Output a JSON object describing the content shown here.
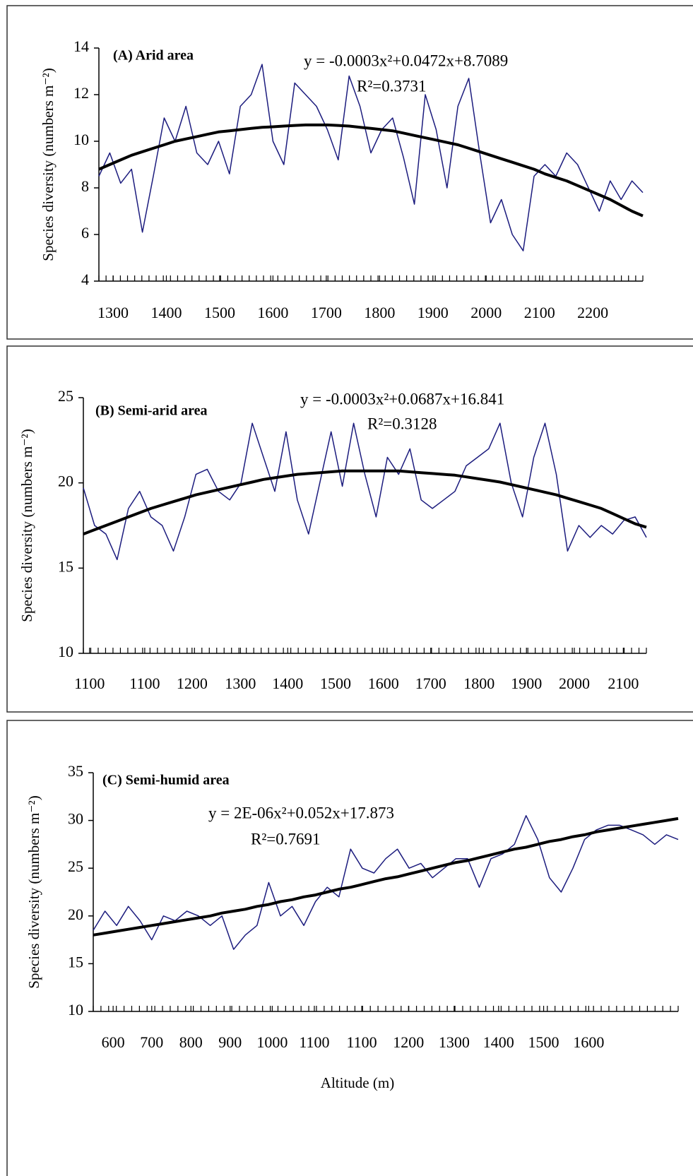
{
  "chart_data": [
    {
      "type": "line",
      "title": "(A) Arid area",
      "annotations": [
        "y = -0.0003x²+0.0472x+8.7089",
        "R²=0.3731"
      ],
      "ylabel": "Species diversity (numbers m⁻²)",
      "x": [
        0,
        2,
        4,
        6,
        8,
        10,
        12,
        14,
        16,
        18,
        20,
        22,
        24,
        26,
        28,
        30,
        32,
        34,
        36,
        38,
        40,
        42,
        44,
        46,
        48,
        50,
        52,
        54,
        56,
        58,
        60,
        62,
        64,
        66,
        68,
        70,
        72,
        74,
        76,
        78,
        80,
        82,
        84,
        86,
        88,
        90,
        92,
        94,
        96,
        98,
        100
      ],
      "xlim": [
        0,
        100
      ],
      "xticks": [
        {
          "value": 2.6,
          "label": "1300"
        },
        {
          "value": 12.4,
          "label": "1400"
        },
        {
          "value": 22.2,
          "label": "1500"
        },
        {
          "value": 32,
          "label": "1600"
        },
        {
          "value": 41.8,
          "label": "1700"
        },
        {
          "value": 51.6,
          "label": "1800"
        },
        {
          "value": 61.4,
          "label": "1900"
        },
        {
          "value": 71.2,
          "label": "2000"
        },
        {
          "value": 81,
          "label": "2100"
        },
        {
          "value": 90.8,
          "label": "2200"
        }
      ],
      "ylim": [
        4,
        14
      ],
      "yticks": [
        4,
        6,
        8,
        10,
        12,
        14
      ],
      "series": [
        {
          "color": "#1c1c7e",
          "width": 1.5,
          "values": [
            8.5,
            9.5,
            8.2,
            8.8,
            6.1,
            8.5,
            11,
            10,
            11.5,
            9.5,
            9,
            10,
            8.6,
            11.5,
            12,
            13.3,
            10,
            9,
            12.5,
            12,
            11.5,
            10.5,
            9.2,
            12.8,
            11.5,
            9.5,
            10.5,
            11,
            9.3,
            7.3,
            12,
            10.5,
            8,
            11.5,
            12.7,
            9.5,
            6.5,
            7.5,
            6,
            5.3,
            8.5,
            9,
            8.5,
            9.5,
            9,
            8,
            7,
            8.3,
            7.5,
            8.3,
            7.8
          ]
        },
        {
          "color": "#000000",
          "width": 4,
          "values": [
            8.8,
            9.0,
            9.2,
            9.4,
            9.55,
            9.7,
            9.85,
            10.0,
            10.1,
            10.2,
            10.3,
            10.4,
            10.45,
            10.5,
            10.55,
            10.6,
            10.62,
            10.65,
            10.68,
            10.7,
            10.7,
            10.7,
            10.68,
            10.65,
            10.6,
            10.55,
            10.5,
            10.45,
            10.35,
            10.25,
            10.15,
            10.05,
            9.95,
            9.85,
            9.7,
            9.55,
            9.4,
            9.25,
            9.1,
            8.95,
            8.8,
            8.6,
            8.45,
            8.3,
            8.1,
            7.9,
            7.7,
            7.5,
            7.25,
            7.0,
            6.8
          ]
        }
      ]
    },
    {
      "type": "line",
      "title": "(B) Semi-arid area",
      "annotations": [
        "y = -0.0003x²+0.0687x+16.841",
        "R²=0.3128"
      ],
      "ylabel": "Species diversity (numbers m⁻²)",
      "x": [
        0,
        2,
        4,
        6,
        8,
        10,
        12,
        14,
        16,
        18,
        20,
        22,
        24,
        26,
        28,
        30,
        32,
        34,
        36,
        38,
        40,
        42,
        44,
        46,
        48,
        50,
        52,
        54,
        56,
        58,
        60,
        62,
        64,
        66,
        68,
        70,
        72,
        74,
        76,
        78,
        80,
        82,
        84,
        86,
        88,
        90,
        92,
        94,
        96,
        98,
        100
      ],
      "xlim": [
        0,
        100
      ],
      "xticks": [
        {
          "value": 1.1,
          "label": "1100"
        },
        {
          "value": 10.9,
          "label": "1100"
        },
        {
          "value": 19.3,
          "label": "1200"
        },
        {
          "value": 27.9,
          "label": "1300"
        },
        {
          "value": 36.3,
          "label": "1400"
        },
        {
          "value": 44.8,
          "label": "1500"
        },
        {
          "value": 53.3,
          "label": "1600"
        },
        {
          "value": 61.7,
          "label": "1700"
        },
        {
          "value": 70.3,
          "label": "1800"
        },
        {
          "value": 78.7,
          "label": "1900"
        },
        {
          "value": 87.2,
          "label": "2000"
        },
        {
          "value": 95.9,
          "label": "2100"
        }
      ],
      "ylim": [
        10,
        25
      ],
      "yticks": [
        10,
        15,
        20,
        25
      ],
      "series": [
        {
          "color": "#1c1c7e",
          "width": 1.5,
          "values": [
            19.7,
            17.5,
            17,
            15.5,
            18.5,
            19.5,
            18,
            17.5,
            16,
            18,
            20.5,
            20.8,
            19.5,
            19,
            20,
            23.5,
            21.5,
            19.5,
            23,
            19,
            17,
            20,
            23,
            19.8,
            23.5,
            20.5,
            18,
            21.5,
            20.5,
            22,
            19,
            18.5,
            19,
            19.5,
            21,
            21.5,
            22,
            23.5,
            20,
            18,
            21.5,
            23.5,
            20.5,
            16,
            17.5,
            16.8,
            17.5,
            17,
            17.8,
            18,
            16.8
          ]
        },
        {
          "color": "#000000",
          "width": 4,
          "values": [
            17.0,
            17.25,
            17.5,
            17.75,
            18.0,
            18.25,
            18.5,
            18.7,
            18.9,
            19.1,
            19.3,
            19.45,
            19.6,
            19.75,
            19.9,
            20.05,
            20.2,
            20.3,
            20.4,
            20.5,
            20.55,
            20.6,
            20.65,
            20.7,
            20.7,
            20.7,
            20.7,
            20.7,
            20.7,
            20.65,
            20.6,
            20.55,
            20.5,
            20.45,
            20.35,
            20.25,
            20.15,
            20.05,
            19.9,
            19.75,
            19.6,
            19.45,
            19.3,
            19.1,
            18.9,
            18.7,
            18.5,
            18.2,
            17.9,
            17.6,
            17.4
          ]
        }
      ]
    },
    {
      "type": "line",
      "title": "(C) Semi-humid area",
      "annotations": [
        "y = 2E-06x²+0.052x+17.873",
        "R²=0.7691"
      ],
      "ylabel": "Species diversity (numbers m⁻²)",
      "xlabel": "Altitude (m)",
      "x": [
        0,
        2,
        4,
        6,
        8,
        10,
        12,
        14,
        16,
        18,
        20,
        22,
        24,
        26,
        28,
        30,
        32,
        34,
        36,
        38,
        40,
        42,
        44,
        46,
        48,
        50,
        52,
        54,
        56,
        58,
        60,
        62,
        64,
        66,
        68,
        70,
        72,
        74,
        76,
        78,
        80,
        82,
        84,
        86,
        88,
        90,
        92,
        94,
        96,
        98,
        100
      ],
      "xlim": [
        0,
        100
      ],
      "xticks": [
        {
          "value": 3.4,
          "label": "600"
        },
        {
          "value": 10,
          "label": "700"
        },
        {
          "value": 16.7,
          "label": "800"
        },
        {
          "value": 23.4,
          "label": "900"
        },
        {
          "value": 30.6,
          "label": "1000"
        },
        {
          "value": 37.8,
          "label": "1100"
        },
        {
          "value": 45.9,
          "label": "1100"
        },
        {
          "value": 53.9,
          "label": "1200"
        },
        {
          "value": 61.7,
          "label": "1300"
        },
        {
          "value": 69.3,
          "label": "1400"
        },
        {
          "value": 77,
          "label": "1500"
        },
        {
          "value": 84.7,
          "label": "1600"
        }
      ],
      "ylim": [
        10,
        35
      ],
      "yticks": [
        10,
        15,
        20,
        25,
        30,
        35
      ],
      "series": [
        {
          "color": "#1c1c7e",
          "width": 1.5,
          "values": [
            18.5,
            20.5,
            19,
            21,
            19.5,
            17.5,
            20,
            19.5,
            20.5,
            20,
            19,
            20,
            16.5,
            18,
            19,
            23.5,
            20,
            21,
            19,
            21.5,
            23,
            22,
            27,
            25,
            24.5,
            26,
            27,
            25,
            25.5,
            24,
            25,
            26,
            26,
            23,
            26,
            26.5,
            27.5,
            30.5,
            28,
            24,
            22.5,
            25,
            28,
            29,
            29.5,
            29.5,
            29,
            28.5,
            27.5,
            28.5,
            28
          ]
        },
        {
          "color": "#000000",
          "width": 4,
          "values": [
            18.0,
            18.2,
            18.4,
            18.6,
            18.8,
            19.0,
            19.2,
            19.4,
            19.6,
            19.8,
            20.0,
            20.3,
            20.5,
            20.7,
            21.0,
            21.2,
            21.5,
            21.7,
            22.0,
            22.2,
            22.5,
            22.8,
            23.0,
            23.3,
            23.6,
            23.9,
            24.1,
            24.4,
            24.7,
            25.0,
            25.3,
            25.6,
            25.8,
            26.1,
            26.4,
            26.7,
            27.0,
            27.2,
            27.5,
            27.8,
            28.0,
            28.3,
            28.5,
            28.8,
            29.0,
            29.2,
            29.4,
            29.6,
            29.8,
            30.0,
            30.2
          ]
        }
      ]
    }
  ]
}
